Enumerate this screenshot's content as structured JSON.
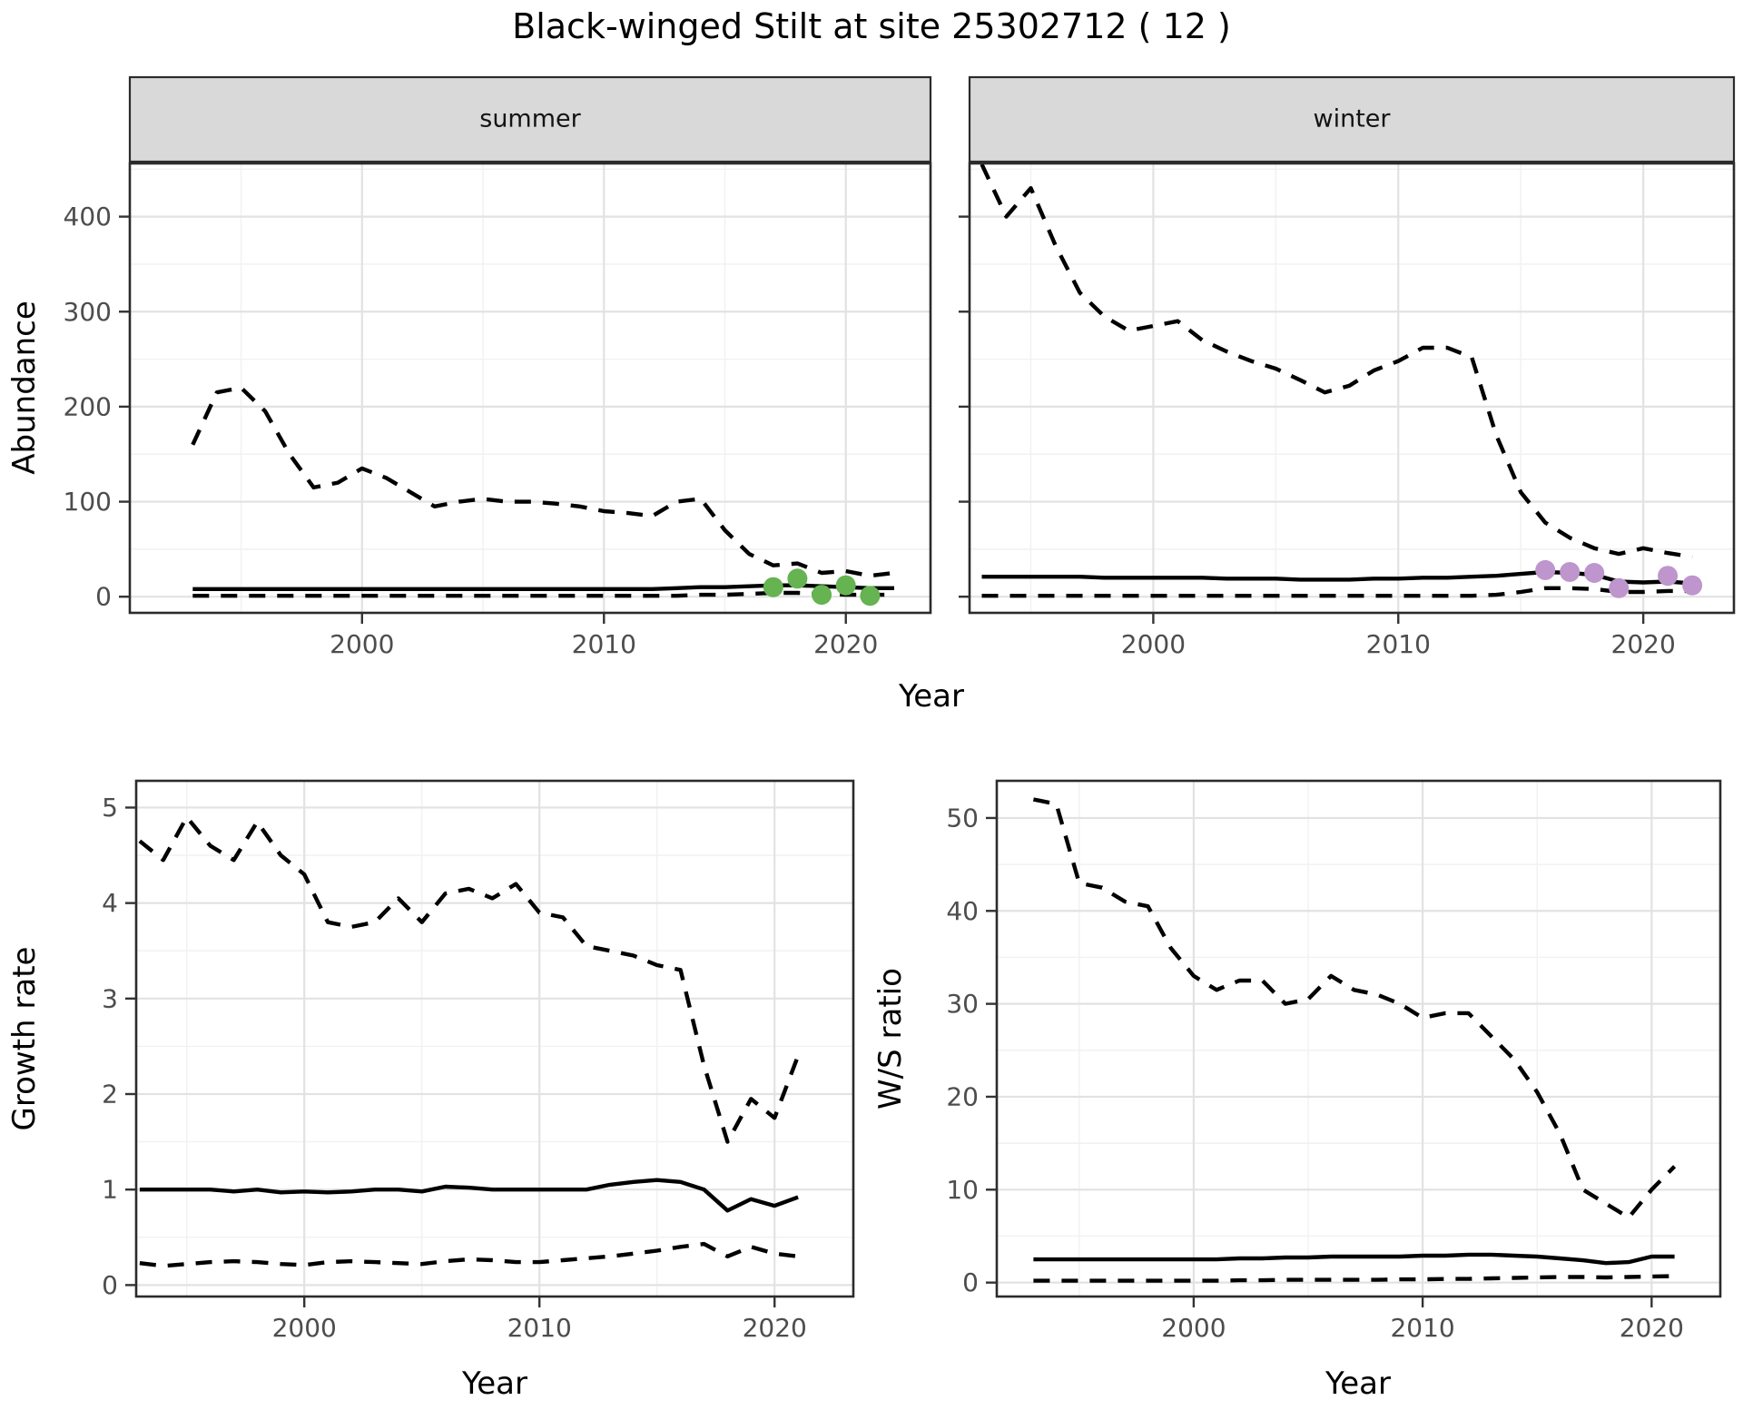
{
  "title": "Black-winged Stilt at site 25302712 ( 12 )",
  "axes": {
    "top_y_label": "Abundance",
    "top_x_label": "Year",
    "bottom_left_y_label": "Growth rate",
    "bottom_right_y_label": "W/S ratio",
    "bottom_x_label": "Year"
  },
  "facets": [
    {
      "label": "summer"
    },
    {
      "label": "winter"
    }
  ],
  "colors": {
    "summer_points": "#65b351",
    "winter_points": "#be95cc",
    "strip_background": "#d9d9d9",
    "line": "#000000",
    "grid_major": "#e2e2e2",
    "grid_minor": "#f1f1f1",
    "axis_text": "#4d4d4d"
  },
  "chart_data": [
    {
      "name": "abundance-summer",
      "type": "line",
      "facet": "summer",
      "title": "Black-winged Stilt at site 25302712 ( 12 )",
      "xlabel": "Year",
      "ylabel": "Abundance",
      "xlim": [
        1990.4,
        2023.5
      ],
      "ylim": [
        -17,
        456
      ],
      "xticks": [
        2000,
        2010,
        2020
      ],
      "yticks": [
        0,
        100,
        200,
        300,
        400
      ],
      "xminor": [
        1995,
        2005,
        2015
      ],
      "yminor": [
        50,
        150,
        250,
        350,
        450
      ],
      "x": [
        1993,
        1994,
        1995,
        1996,
        1997,
        1998,
        1999,
        2000,
        2001,
        2002,
        2003,
        2004,
        2005,
        2006,
        2007,
        2008,
        2009,
        2010,
        2011,
        2012,
        2013,
        2014,
        2015,
        2016,
        2017,
        2018,
        2019,
        2020,
        2021,
        2022
      ],
      "series": [
        {
          "name": "median",
          "style": "solid",
          "values": [
            8,
            8,
            8,
            8,
            8,
            8,
            8,
            8,
            8,
            8,
            8,
            8,
            8,
            8,
            8,
            8,
            8,
            8,
            8,
            8,
            9,
            10,
            10,
            11,
            12,
            12,
            11,
            10,
            9,
            9
          ]
        },
        {
          "name": "upper-ci",
          "style": "dashed",
          "values": [
            160,
            215,
            220,
            195,
            150,
            115,
            120,
            135,
            125,
            110,
            95,
            100,
            103,
            100,
            100,
            98,
            95,
            90,
            88,
            85,
            100,
            103,
            70,
            45,
            33,
            35,
            25,
            27,
            22,
            25
          ]
        },
        {
          "name": "lower-ci",
          "style": "dashed",
          "values": [
            1,
            1,
            1,
            1,
            1,
            1,
            1,
            1,
            1,
            1,
            1,
            1,
            1,
            1,
            1,
            1,
            1,
            1,
            1,
            1,
            1,
            2,
            2,
            3,
            4,
            4,
            3,
            2,
            2,
            2
          ]
        }
      ],
      "points": {
        "name": "observed-counts",
        "color": "#65b351",
        "x": [
          2017,
          2018,
          2019,
          2020,
          2021
        ],
        "y": [
          10,
          19,
          2,
          12,
          1
        ]
      }
    },
    {
      "name": "abundance-winter",
      "type": "line",
      "facet": "winter",
      "xlabel": "Year",
      "ylabel": "Abundance",
      "xlim": [
        1992.5,
        2023.7
      ],
      "ylim": [
        -17,
        456
      ],
      "xticks": [
        2000,
        2010,
        2020
      ],
      "yticks": [
        0,
        100,
        200,
        300,
        400
      ],
      "xminor": [
        1995,
        2005,
        2015
      ],
      "yminor": [
        50,
        150,
        250,
        350,
        450
      ],
      "x": [
        1993,
        1994,
        1995,
        1996,
        1997,
        1998,
        1999,
        2000,
        2001,
        2002,
        2003,
        2004,
        2005,
        2006,
        2007,
        2008,
        2009,
        2010,
        2011,
        2012,
        2013,
        2014,
        2015,
        2016,
        2017,
        2018,
        2019,
        2020,
        2021,
        2022
      ],
      "series": [
        {
          "name": "median",
          "style": "solid",
          "values": [
            21,
            21,
            21,
            21,
            21,
            20,
            20,
            20,
            20,
            20,
            19,
            19,
            19,
            18,
            18,
            18,
            19,
            19,
            20,
            20,
            21,
            22,
            24,
            26,
            25,
            23,
            16,
            15,
            16,
            14
          ]
        },
        {
          "name": "upper-ci",
          "style": "dashed",
          "values": [
            455,
            400,
            430,
            370,
            320,
            295,
            280,
            285,
            290,
            270,
            258,
            248,
            240,
            228,
            215,
            222,
            238,
            248,
            262,
            262,
            252,
            170,
            110,
            78,
            62,
            51,
            45,
            51,
            46,
            42
          ]
        },
        {
          "name": "lower-ci",
          "style": "dashed",
          "values": [
            1,
            1,
            1,
            1,
            1,
            1,
            1,
            1,
            1,
            1,
            1,
            1,
            1,
            1,
            1,
            1,
            1,
            1,
            1,
            1,
            1,
            2,
            5,
            9,
            9,
            8,
            5,
            5,
            6,
            6
          ]
        }
      ],
      "points": {
        "name": "observed-counts",
        "color": "#be95cc",
        "x": [
          2016,
          2017,
          2018,
          2019,
          2021,
          2022
        ],
        "y": [
          28,
          26,
          25,
          9,
          22,
          12
        ]
      }
    },
    {
      "name": "growth-rate",
      "type": "line",
      "xlabel": "Year",
      "ylabel": "Growth rate",
      "xlim": [
        1992.85,
        2023.35
      ],
      "ylim": [
        -0.12,
        5.28
      ],
      "xticks": [
        2000,
        2010,
        2020
      ],
      "yticks": [
        0,
        1,
        2,
        3,
        4,
        5
      ],
      "xminor": [
        1995,
        2005,
        2015
      ],
      "yminor": [
        0.5,
        1.5,
        2.5,
        3.5,
        4.5
      ],
      "x": [
        1993,
        1994,
        1995,
        1996,
        1997,
        1998,
        1999,
        2000,
        2001,
        2002,
        2003,
        2004,
        2005,
        2006,
        2007,
        2008,
        2009,
        2010,
        2011,
        2012,
        2013,
        2014,
        2015,
        2016,
        2017,
        2018,
        2019,
        2020,
        2021
      ],
      "series": [
        {
          "name": "median",
          "style": "solid",
          "values": [
            1.0,
            1.0,
            1.0,
            1.0,
            0.98,
            1.0,
            0.97,
            0.98,
            0.97,
            0.98,
            1.0,
            1.0,
            0.98,
            1.03,
            1.02,
            1.0,
            1.0,
            1.0,
            1.0,
            1.0,
            1.05,
            1.08,
            1.1,
            1.08,
            1.0,
            0.78,
            0.9,
            0.83,
            0.92
          ]
        },
        {
          "name": "upper-ci",
          "style": "dashed",
          "values": [
            4.65,
            4.45,
            4.9,
            4.6,
            4.45,
            4.85,
            4.5,
            4.3,
            3.8,
            3.75,
            3.8,
            4.05,
            3.8,
            4.1,
            4.15,
            4.05,
            4.2,
            3.9,
            3.85,
            3.55,
            3.5,
            3.45,
            3.35,
            3.3,
            2.3,
            1.5,
            1.95,
            1.75,
            2.4
          ]
        },
        {
          "name": "lower-ci",
          "style": "dashed",
          "values": [
            0.23,
            0.2,
            0.22,
            0.24,
            0.25,
            0.24,
            0.22,
            0.21,
            0.24,
            0.25,
            0.24,
            0.23,
            0.22,
            0.25,
            0.27,
            0.26,
            0.24,
            0.24,
            0.26,
            0.28,
            0.3,
            0.33,
            0.36,
            0.4,
            0.43,
            0.3,
            0.4,
            0.33,
            0.3
          ]
        }
      ]
    },
    {
      "name": "ws-ratio",
      "type": "line",
      "xlabel": "Year",
      "ylabel": "W/S ratio",
      "xlim": [
        1991.4,
        2023.0
      ],
      "ylim": [
        -1.5,
        54
      ],
      "xticks": [
        2000,
        2010,
        2020
      ],
      "yticks": [
        0,
        10,
        20,
        30,
        40,
        50
      ],
      "xminor": [
        1995,
        2005,
        2015
      ],
      "yminor": [
        5,
        15,
        25,
        35,
        45
      ],
      "x": [
        1993,
        1994,
        1995,
        1996,
        1997,
        1998,
        1999,
        2000,
        2001,
        2002,
        2003,
        2004,
        2005,
        2006,
        2007,
        2008,
        2009,
        2010,
        2011,
        2012,
        2013,
        2014,
        2015,
        2016,
        2017,
        2018,
        2019,
        2020,
        2021
      ],
      "series": [
        {
          "name": "median",
          "style": "solid",
          "values": [
            2.5,
            2.5,
            2.5,
            2.5,
            2.5,
            2.5,
            2.5,
            2.5,
            2.5,
            2.6,
            2.6,
            2.7,
            2.7,
            2.8,
            2.8,
            2.8,
            2.8,
            2.9,
            2.9,
            3.0,
            3.0,
            2.9,
            2.8,
            2.6,
            2.4,
            2.1,
            2.2,
            2.8,
            2.8
          ]
        },
        {
          "name": "upper-ci",
          "style": "dashed",
          "values": [
            52,
            51.5,
            43,
            42.5,
            41,
            40.5,
            36,
            33,
            31.5,
            32.5,
            32.5,
            30,
            30.5,
            33,
            31.5,
            31,
            30,
            28.5,
            29,
            29,
            26.5,
            24,
            20.5,
            16,
            10,
            8.5,
            7,
            10,
            12.5
          ]
        },
        {
          "name": "lower-ci",
          "style": "dashed",
          "values": [
            0.2,
            0.2,
            0.2,
            0.2,
            0.2,
            0.2,
            0.2,
            0.2,
            0.2,
            0.25,
            0.25,
            0.3,
            0.3,
            0.3,
            0.3,
            0.3,
            0.35,
            0.35,
            0.4,
            0.4,
            0.45,
            0.5,
            0.55,
            0.6,
            0.6,
            0.55,
            0.6,
            0.65,
            0.7
          ]
        }
      ]
    }
  ]
}
